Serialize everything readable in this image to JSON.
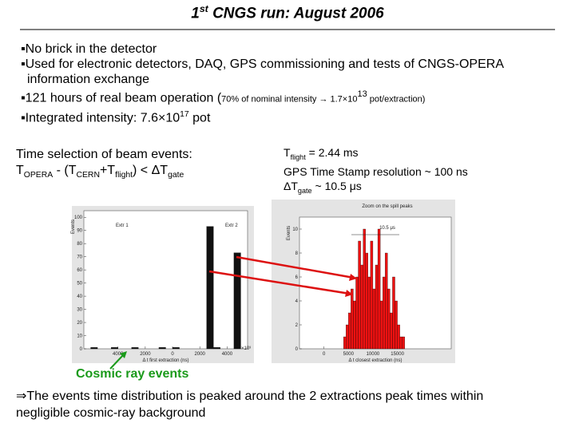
{
  "title": [
    [
      "1",
      ""
    ],
    [
      "st",
      "sup"
    ],
    [
      " CNGS run: August 2006",
      ""
    ]
  ],
  "bullets": [
    [
      [
        "No brick in the detector",
        ""
      ]
    ],
    [
      [
        "Used for electronic detectors, DAQ, GPS commissioning and tests of CNGS-OPERA information exchange",
        ""
      ]
    ],
    [
      [
        "121 hours of real beam operation   (",
        ""
      ],
      [
        "70% of nominal intensity → 1.7×10",
        "small"
      ],
      [
        "13",
        "smallsup"
      ],
      [
        " pot/extraction)",
        "small"
      ]
    ],
    [
      [
        "Integrated intensity: 7.6×10",
        ""
      ],
      [
        "17",
        "sup"
      ],
      [
        " pot",
        ""
      ]
    ]
  ],
  "selection": [
    [
      [
        "Time selection of beam events:",
        ""
      ]
    ],
    [
      [
        "T",
        ""
      ],
      [
        "OPERA",
        "sub"
      ],
      [
        " - (T",
        ""
      ],
      [
        "CERN",
        "sub"
      ],
      [
        "+T",
        ""
      ],
      [
        "flight",
        "sub"
      ],
      [
        ") < ΔT",
        ""
      ],
      [
        "gate",
        "sub"
      ]
    ]
  ],
  "timing": [
    [
      [
        "T",
        ""
      ],
      [
        "flight",
        "sub"
      ],
      [
        " = 2.44 ms",
        ""
      ]
    ],
    [
      [
        "GPS Time Stamp resolution ~ 100 ns",
        ""
      ]
    ],
    [
      [
        "ΔT",
        ""
      ],
      [
        "gate",
        "sub"
      ],
      [
        " ~ 10.5 μs",
        ""
      ]
    ]
  ],
  "cosmic_label": "Cosmic ray events",
  "conclusion": "⇒The events time distribution is peaked around the 2 extractions peak times within negligible cosmic-ray background",
  "chart_data": [
    {
      "type": "histogram",
      "ylabel": "Events",
      "xlabel": "Δ t first extraction (ns)",
      "x_multiplier": "×10³",
      "annotations": [
        "Extr 1",
        "Extr 2"
      ],
      "color": "#111111",
      "bins": [
        -6500,
        -6000,
        -5500,
        -5000,
        -4500,
        -4000,
        -3500,
        -3000,
        -2500,
        -2000,
        -1500,
        -1000,
        -500,
        0,
        500,
        1000,
        1500,
        2000,
        2500,
        3000,
        3500,
        4000,
        4500,
        5000,
        5500
      ],
      "counts": [
        0,
        1,
        0,
        0,
        1,
        0,
        0,
        1,
        0,
        0,
        0,
        1,
        0,
        1,
        0,
        0,
        0,
        0,
        93,
        1,
        0,
        0,
        73,
        0
      ],
      "xlim": [
        -6500,
        5500
      ],
      "ylim": [
        0,
        105
      ],
      "xticks": [
        {
          "value": -4000,
          "label": "4000"
        },
        {
          "value": -2000,
          "label": "2000"
        },
        0,
        2000,
        4000
      ],
      "yticks": [
        0,
        10,
        20,
        30,
        40,
        50,
        60,
        70,
        80,
        90,
        100
      ]
    },
    {
      "type": "histogram",
      "title": "Zoom on the spill peaks",
      "ylabel": "Events",
      "xlabel": "Δ t closest extraction (ns)",
      "annotations": [
        "10.5 μs"
      ],
      "color": "#ee1111",
      "bins": [
        4000,
        4500,
        5000,
        5500,
        6000,
        6500,
        7000,
        7500,
        8000,
        8500,
        9000,
        9500,
        10000,
        10500,
        11000,
        11500,
        12000,
        12500,
        13000,
        13500,
        14000,
        14500,
        15000,
        15500,
        16000,
        16500
      ],
      "counts": [
        1,
        2,
        3,
        5,
        4,
        6,
        9,
        7,
        10,
        8,
        6,
        9,
        5,
        7,
        10,
        4,
        6,
        8,
        5,
        3,
        6,
        4,
        2,
        1,
        1
      ],
      "xlim": [
        -5000,
        26000
      ],
      "ylim": [
        0,
        11
      ],
      "xticks": [
        0,
        5000,
        10000,
        15000
      ],
      "yticks": [
        0,
        2,
        4,
        6,
        8,
        10
      ]
    }
  ]
}
